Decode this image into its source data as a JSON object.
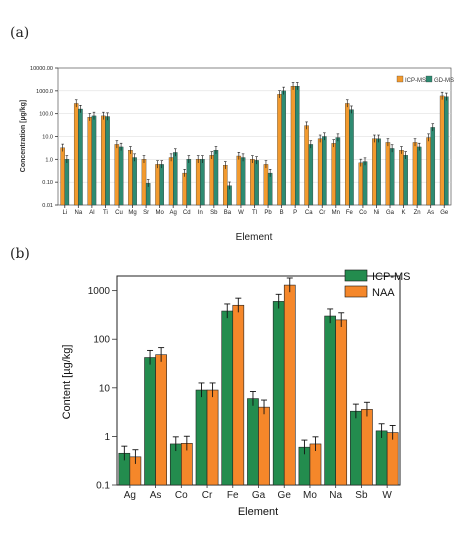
{
  "chart_data": [
    {
      "panel": "(a)",
      "type": "bar",
      "ylabel": "Concentration [µg/kg]",
      "xlabel": "Element",
      "yscale": "log",
      "ylim": [
        0.01,
        10000
      ],
      "yticks": [
        "10000.00",
        "1000.0",
        "100.0",
        "10.0",
        "1.0",
        "0.10",
        "0.01"
      ],
      "legend": "top-right",
      "colors": {
        "ICP-MS": "#f29a2e",
        "GD-MS": "#2e8b72"
      },
      "categories": [
        "Li",
        "Na",
        "Al",
        "Ti",
        "Cu",
        "Mg",
        "Sr",
        "Mo",
        "Ag",
        "Cd",
        "In",
        "Sb",
        "Ba",
        "W",
        "Tl",
        "Pb",
        "B",
        "P",
        "Ca",
        "Cr",
        "Mn",
        "Fe",
        "Co",
        "Ni",
        "Ga",
        "K",
        "Zn",
        "As",
        "Ge"
      ],
      "series": [
        {
          "name": "ICP-MS",
          "values": [
            3.2,
            280,
            70,
            80,
            4.5,
            2.5,
            1.0,
            0.6,
            1.2,
            0.25,
            1.0,
            1.5,
            0.55,
            1.4,
            1.0,
            0.6,
            700,
            1600,
            30,
            8,
            5,
            280,
            0.7,
            8,
            5.5,
            2.5,
            5.5,
            9,
            600
          ]
        },
        {
          "name": "GD-MS",
          "values": [
            1.0,
            160,
            80,
            75,
            3.5,
            1.2,
            0.09,
            0.6,
            2.0,
            1.0,
            1.0,
            2.5,
            0.07,
            1.2,
            0.9,
            0.25,
            1000,
            1600,
            4.5,
            10,
            9,
            150,
            0.8,
            8,
            3,
            1.5,
            3.5,
            25,
            550
          ]
        }
      ]
    },
    {
      "panel": "(b)",
      "type": "bar",
      "ylabel": "Content [µg/kg]",
      "xlabel": "Element",
      "yscale": "log",
      "ylim": [
        0.1,
        2000
      ],
      "yticks": [
        "1000",
        "100",
        "10",
        "1",
        "0.1"
      ],
      "legend": "top-right",
      "colors": {
        "ICP-MS": "#238c4e",
        "NAA": "#f5872a"
      },
      "categories": [
        "Ag",
        "As",
        "Co",
        "Cr",
        "Fe",
        "Ga",
        "Ge",
        "Mo",
        "Na",
        "Sb",
        "W"
      ],
      "series": [
        {
          "name": "ICP-MS",
          "values": [
            0.45,
            42,
            0.7,
            9,
            380,
            6,
            600,
            0.6,
            300,
            3.3,
            1.3
          ]
        },
        {
          "name": "NAA",
          "values": [
            0.38,
            48,
            0.72,
            9,
            500,
            4,
            1300,
            0.7,
            250,
            3.6,
            1.2
          ]
        }
      ]
    }
  ]
}
